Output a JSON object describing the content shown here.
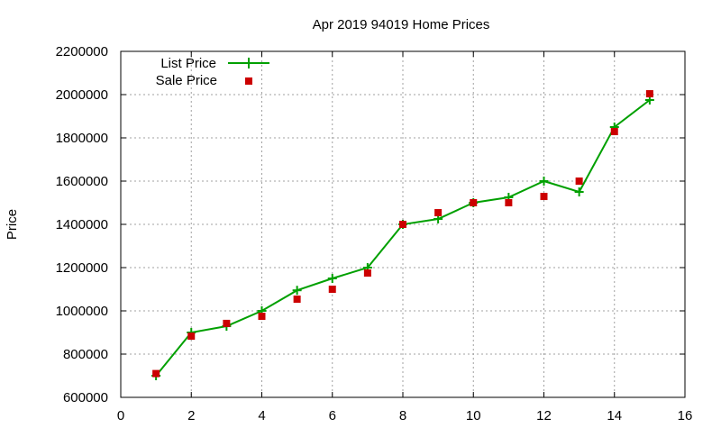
{
  "chart_data": {
    "type": "line",
    "title": "Apr 2019 94019 Home Prices",
    "xlabel": "",
    "ylabel": "Price",
    "xlim": [
      0,
      16
    ],
    "ylim": [
      600000,
      2200000
    ],
    "x_ticks": [
      0,
      2,
      4,
      6,
      8,
      10,
      12,
      14,
      16
    ],
    "y_ticks": [
      600000,
      800000,
      1000000,
      1200000,
      1400000,
      1600000,
      1800000,
      2000000,
      2200000
    ],
    "grid": true,
    "legend_position": "top-left",
    "x": [
      1,
      2,
      3,
      4,
      5,
      6,
      7,
      8,
      9,
      10,
      11,
      12,
      13,
      14,
      15
    ],
    "series": [
      {
        "name": "List Price",
        "style": "linespoints",
        "marker": "plus",
        "color": "#00a000",
        "values": [
          700000,
          900000,
          929000,
          1000000,
          1095000,
          1150000,
          1200000,
          1400000,
          1425000,
          1500000,
          1525000,
          1600000,
          1550000,
          1850000,
          1975000
        ]
      },
      {
        "name": "Sale Price",
        "style": "points",
        "marker": "filled-square",
        "color": "#cc0000",
        "values": [
          710000,
          883000,
          942000,
          975000,
          1054000,
          1100000,
          1175000,
          1400000,
          1454000,
          1500000,
          1500000,
          1529000,
          1600000,
          1829000,
          2004000
        ]
      }
    ]
  },
  "colors": {
    "list": "#00a000",
    "sale": "#cc0000",
    "grid": "#a0a0a0",
    "axis": "#000000"
  }
}
